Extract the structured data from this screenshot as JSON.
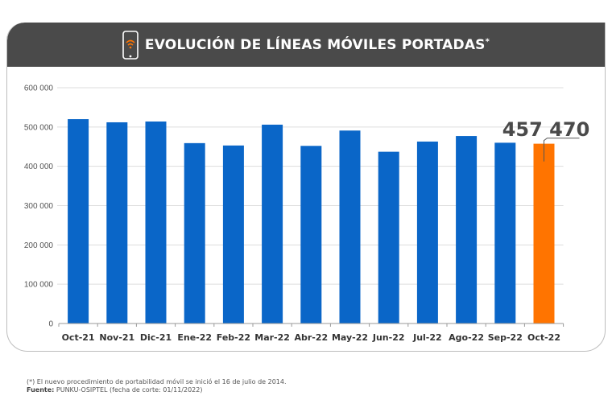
{
  "header": {
    "icon": "smartphone-wifi-icon",
    "title": "EVOLUCIÓN DE LÍNEAS MÓVILES PORTADAS",
    "title_mark": "*"
  },
  "colors": {
    "header_bg": "#4a4a4a",
    "bar": "#0a66c8",
    "highlight_bar": "#ff7400",
    "grid": "#dddddd"
  },
  "chart_data": {
    "type": "bar",
    "title": "EVOLUCIÓN DE LÍNEAS MÓVILES PORTADAS*",
    "xlabel": "",
    "ylabel": "",
    "categories": [
      "Oct-21",
      "Nov-21",
      "Dic-21",
      "Ene-22",
      "Feb-22",
      "Mar-22",
      "Abr-22",
      "May-22",
      "Jun-22",
      "Jul-22",
      "Ago-22",
      "Sep-22",
      "Oct-22"
    ],
    "values": [
      520000,
      512000,
      514000,
      459000,
      453000,
      506000,
      452000,
      491000,
      437000,
      463000,
      477000,
      460000,
      457470
    ],
    "highlight_index": 12,
    "ylim": [
      0,
      600000
    ],
    "yticks": [
      0,
      100000,
      200000,
      300000,
      400000,
      500000,
      600000
    ],
    "ytick_labels": [
      "0",
      "100 000",
      "200 000",
      "300 000",
      "400 000",
      "500 000",
      "600 000"
    ],
    "grid": true,
    "legend": "none",
    "annotations": [
      {
        "category": "Oct-22",
        "text": "457 470"
      }
    ]
  },
  "footer": {
    "note": "(*) El nuevo procedimiento de portabilidad móvil se inició el 16 de julio de 2014.",
    "source_label": "Fuente:",
    "source_text": " PUNKU-OSIPTEL (fecha de corte: 01/11/2022)"
  }
}
